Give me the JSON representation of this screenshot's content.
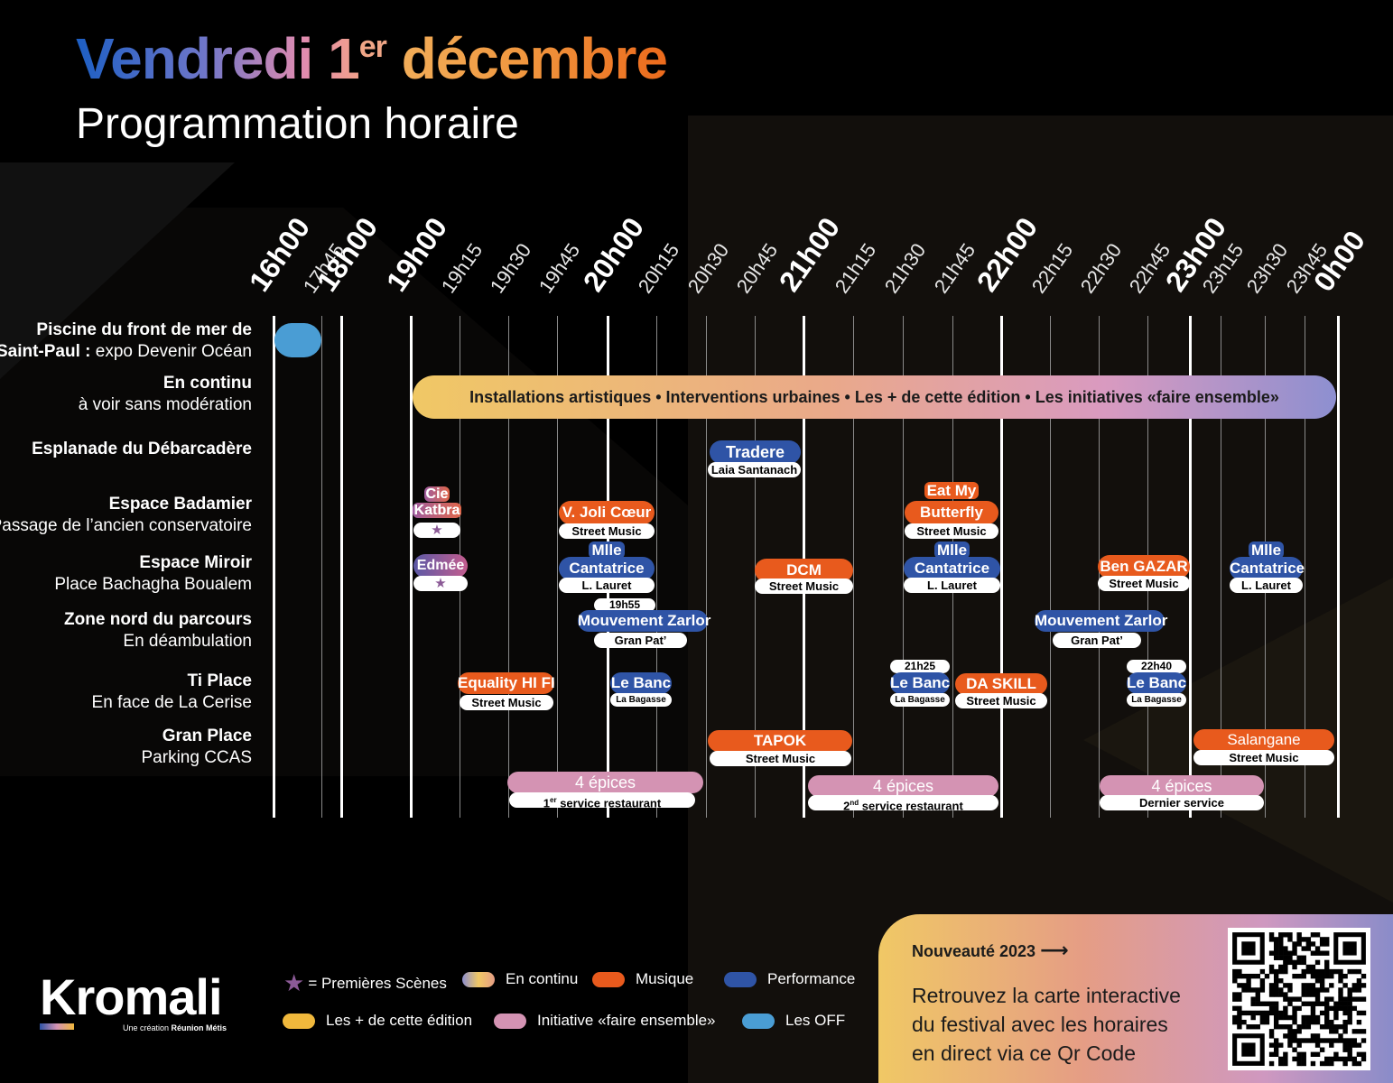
{
  "title": {
    "part1": "Vendredi 1",
    "sup": "er",
    "part2": " décembre",
    "subtitle": "Programmation horaire"
  },
  "colors": {
    "musique": "#e85a1d",
    "performance": "#2f54a6",
    "faire_ensemble": "#d493b3",
    "les_off": "#4a9dd4",
    "les_plus": "#f0b83c"
  },
  "times": [
    {
      "label": "16h00",
      "major": true
    },
    {
      "label": "17h45",
      "major": false
    },
    {
      "label": "18h00",
      "major": true
    },
    {
      "label": "19h00",
      "major": true
    },
    {
      "label": "19h15",
      "major": false
    },
    {
      "label": "19h30",
      "major": false
    },
    {
      "label": "19h45",
      "major": false
    },
    {
      "label": "20h00",
      "major": true
    },
    {
      "label": "20h15",
      "major": false
    },
    {
      "label": "20h30",
      "major": false
    },
    {
      "label": "20h45",
      "major": false
    },
    {
      "label": "21h00",
      "major": true
    },
    {
      "label": "21h15",
      "major": false
    },
    {
      "label": "21h30",
      "major": false
    },
    {
      "label": "21h45",
      "major": false
    },
    {
      "label": "22h00",
      "major": true
    },
    {
      "label": "22h15",
      "major": false
    },
    {
      "label": "22h30",
      "major": false
    },
    {
      "label": "22h45",
      "major": false
    },
    {
      "label": "23h00",
      "major": true
    },
    {
      "label": "23h15",
      "major": false
    },
    {
      "label": "23h30",
      "major": false
    },
    {
      "label": "23h45",
      "major": false
    },
    {
      "label": "0h00",
      "major": true
    }
  ],
  "rows": [
    {
      "bold": "Piscine du front de mer de",
      "line2_bold": "Saint-Paul :",
      "line2": " expo Devenir Océan"
    },
    {
      "bold": "En continu",
      "line2": "à voir sans modération"
    },
    {
      "bold": "Esplanade du Débarcadère",
      "line2": ""
    },
    {
      "bold": "Espace Badamier",
      "line2": "Passage de l’ancien conservatoire"
    },
    {
      "bold": "Espace Miroir",
      "line2": "Place Bachagha Boualem"
    },
    {
      "bold": "Zone nord du parcours",
      "line2": "En déambulation"
    },
    {
      "bold": "Ti Place",
      "line2": "En face de La Cerise"
    },
    {
      "bold": "Gran Place",
      "line2": "Parking CCAS"
    }
  ],
  "continu_banner": "Installations artistiques • Interventions urbaines • Les + de cette édition •  Les initiatives «faire ensemble»",
  "events": {
    "tradere": {
      "name": "Tradere",
      "sub": "Laia Santanach"
    },
    "cie_katbra": {
      "name1": "Cie",
      "name2": "Katbra",
      "star": "★"
    },
    "joli_coeur": {
      "name": "V. Joli Cœur",
      "sub": "Street Music"
    },
    "eat_my_butterfly": {
      "name1": "Eat My",
      "name2": "Butterfly",
      "sub": "Street Music"
    },
    "edmee": {
      "name": "Edmée",
      "star": "★"
    },
    "mlle_cantatrice_1": {
      "name1": "Mlle",
      "name2": "Cantatrice",
      "sub": "L. Lauret"
    },
    "dcm": {
      "name": "DCM",
      "sub": "Street Music"
    },
    "mlle_cantatrice_2": {
      "name1": "Mlle",
      "name2": "Cantatrice",
      "sub": "L. Lauret"
    },
    "ben_gazar": {
      "name": "Ben GAZAR",
      "sub": "Street Music"
    },
    "mlle_cantatrice_3": {
      "name1": "Mlle",
      "name2": "Cantatrice",
      "sub": "L. Lauret"
    },
    "zarlor_1": {
      "time": "19h55",
      "name": "Mouvement Zarlor",
      "sub": "Gran Pat’"
    },
    "zarlor_2": {
      "name": "Mouvement Zarlor",
      "sub": "Gran Pat’"
    },
    "equality": {
      "name": "Equality HI FI",
      "sub": "Street Music"
    },
    "le_banc_1": {
      "name": "Le Banc",
      "sub": "La Bagasse"
    },
    "le_banc_2": {
      "time": "21h25",
      "name": "Le Banc",
      "sub": "La Bagasse"
    },
    "da_skill": {
      "name": "DA SKILL",
      "sub": "Street Music"
    },
    "le_banc_3": {
      "time": "22h40",
      "name": "Le Banc",
      "sub": "La Bagasse"
    },
    "tapok": {
      "name": "TAPOK",
      "sub": "Street Music"
    },
    "salangane": {
      "name": "Salangane",
      "sub": "Street Music"
    },
    "epices_1": {
      "name": "4 épices",
      "sub_pre": "1",
      "sub_sup": "er",
      "sub_post": " service restaurant"
    },
    "epices_2": {
      "name": "4 épices",
      "sub_pre": "2",
      "sub_sup": "nd",
      "sub_post": " service restaurant"
    },
    "epices_3": {
      "name": "4 épices",
      "sub": "Dernier service"
    }
  },
  "legend": {
    "premieres": "= Premières Scènes",
    "continu": "En continu",
    "musique": "Musique",
    "performance": "Performance",
    "plus": "Les + de cette édition",
    "faire": "Initiative «faire ensemble»",
    "off": "Les OFF"
  },
  "brand": {
    "name": "Kromali",
    "tagline_pre": "Une création ",
    "tagline_bold": "Réunion Métis"
  },
  "card": {
    "heading": "Nouveauté 2023",
    "arrow": "⟶",
    "line1": "Retrouvez la carte interactive",
    "line2": "du festival avec les horaires",
    "line3": "en direct via ce Qr Code"
  }
}
